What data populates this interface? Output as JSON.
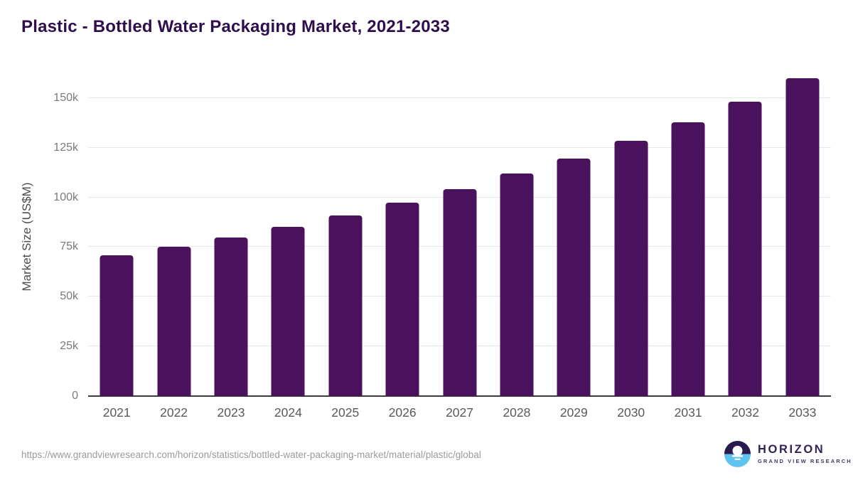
{
  "chart_data": {
    "type": "bar",
    "title": "Plastic - Bottled Water Packaging Market, 2021-2033",
    "categories": [
      "2021",
      "2022",
      "2023",
      "2024",
      "2025",
      "2026",
      "2027",
      "2028",
      "2029",
      "2030",
      "2031",
      "2032",
      "2033"
    ],
    "values": [
      71000,
      75300,
      80000,
      85300,
      91000,
      97400,
      104100,
      112000,
      119700,
      128600,
      137800,
      148300,
      160000
    ],
    "xlabel": "",
    "ylabel": "Market Size (US$M)",
    "ylim": [
      0,
      160000
    ],
    "yticks": [
      {
        "value": 0,
        "label": "0"
      },
      {
        "value": 25000,
        "label": "25k"
      },
      {
        "value": 50000,
        "label": "50k"
      },
      {
        "value": 75000,
        "label": "75k"
      },
      {
        "value": 100000,
        "label": "100k"
      },
      {
        "value": 125000,
        "label": "125k"
      },
      {
        "value": 150000,
        "label": "150k"
      }
    ],
    "grid": "horizontal",
    "legend": "none",
    "bar_color": "#4a115c"
  },
  "colors": {
    "title": "#2f0e4e",
    "bar": "#4a115c",
    "gridline": "#e8e8e8",
    "axis_line": "#3c3c3c",
    "tick_label": "#7a7a7a",
    "source_text": "#9b9b9b",
    "logo_purple": "#2b1a4e",
    "logo_blue": "#5ec3ef"
  },
  "footer": {
    "source_url": "https://www.grandviewresearch.com/horizon/statistics/bottled-water-packaging-market/material/plastic/global",
    "logo": {
      "brand": "HORIZON",
      "subtitle": "GRAND VIEW RESEARCH",
      "icon": "horizon-sun-over-water-icon"
    }
  }
}
